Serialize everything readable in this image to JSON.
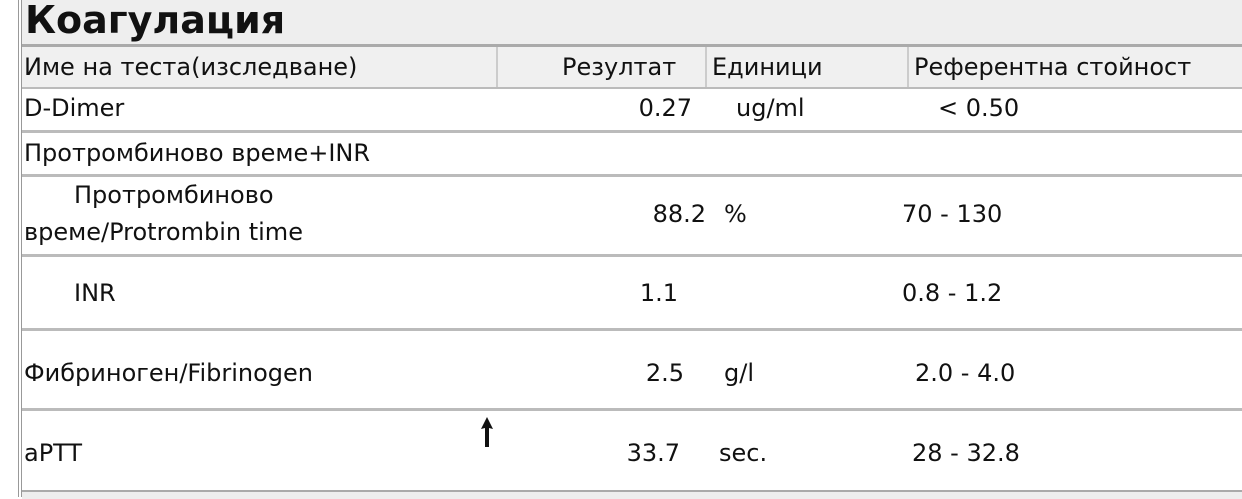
{
  "title": "Коагулация",
  "columns": [
    "Име на теста(изследване)",
    "Резултат",
    "Единици",
    "Референтна стойност"
  ],
  "rows": [
    {
      "name": "D-Dimer",
      "result": "0.27",
      "units": "ug/ml",
      "reference": "< 0.50"
    },
    {
      "name": "Протромбиново време+INR",
      "result": "",
      "units": "",
      "reference": ""
    },
    {
      "name_line1": "Протромбиново",
      "name_line2": "време/Protrombin time",
      "result": "88.2",
      "units": "%",
      "reference": "70 - 130"
    },
    {
      "name": "INR",
      "result": "1.1",
      "units": "",
      "reference": "0.8 - 1.2"
    },
    {
      "name": "Фибриноген/Fibrinogen",
      "result": "2.5",
      "units": "g/l",
      "reference": "2.0 - 4.0"
    },
    {
      "name": "aPTT",
      "result": "33.7",
      "units": "sec.",
      "reference": "28 - 32.8",
      "flag": "arrow-up-icon"
    }
  ]
}
